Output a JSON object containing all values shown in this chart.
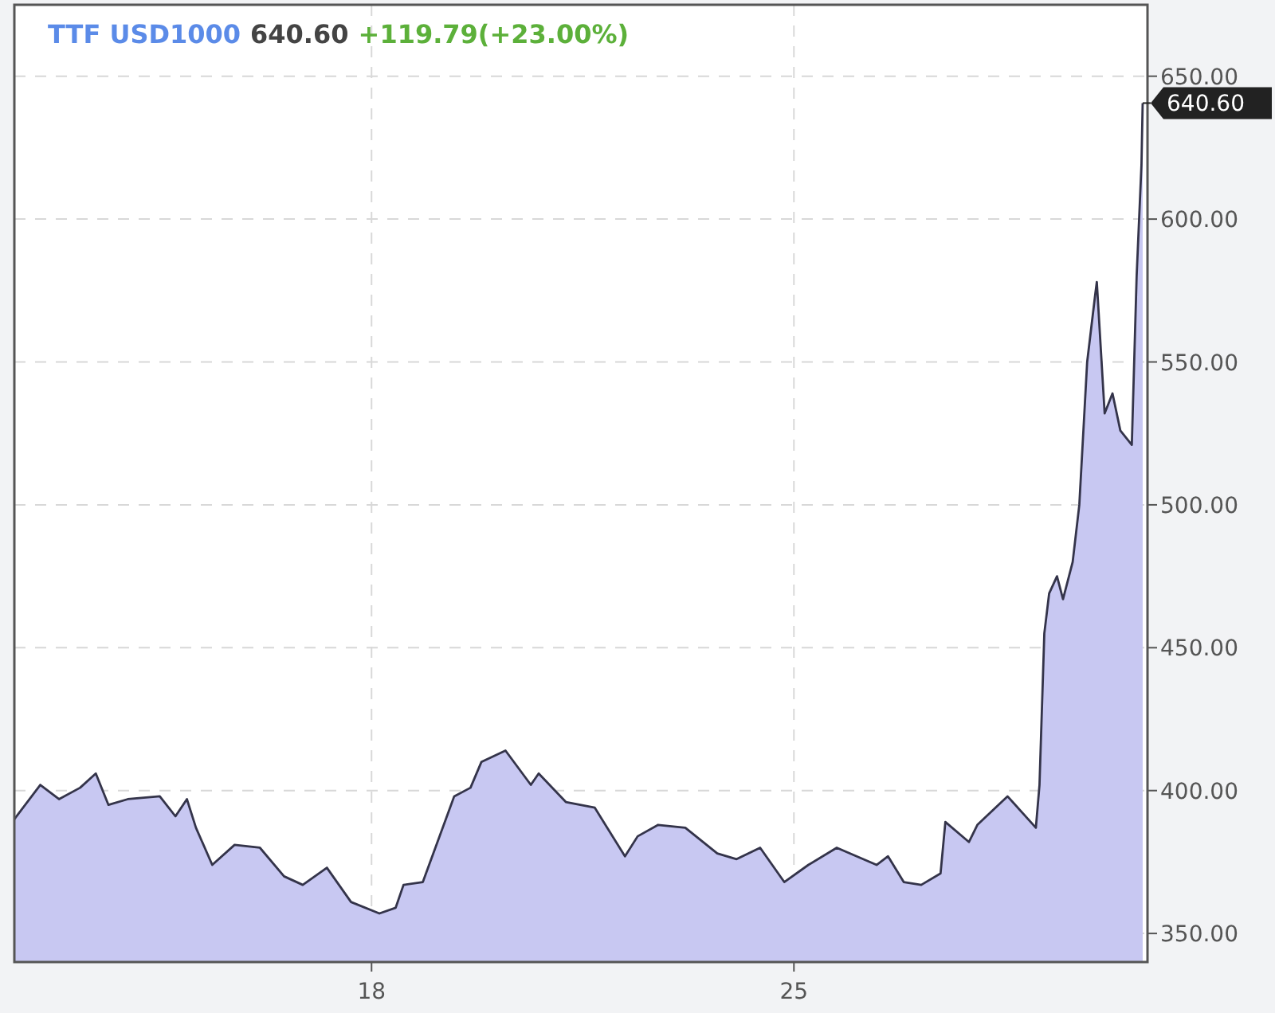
{
  "chart_data": {
    "type": "area",
    "title": "TTF USD1000",
    "annotations": [
      "640.60",
      "+119.79(+23.00%)",
      {
        "text": "640.60",
        "x": 30.78,
        "y": 640.6
      }
    ],
    "x": [
      12.08,
      12.51,
      12.82,
      13.17,
      13.43,
      13.64,
      13.96,
      14.49,
      14.75,
      14.94,
      15.09,
      15.36,
      15.73,
      16.15,
      16.55,
      16.86,
      17.26,
      17.66,
      18.13,
      18.4,
      18.53,
      18.85,
      19.37,
      19.64,
      19.82,
      20.22,
      20.64,
      20.77,
      21.22,
      21.7,
      22.2,
      22.41,
      22.75,
      23.2,
      23.73,
      24.05,
      24.44,
      24.84,
      25.24,
      25.71,
      26.37,
      26.56,
      26.82,
      27.11,
      27.43,
      27.51,
      27.9,
      28.04,
      28.54,
      29.01,
      29.07,
      29.15,
      29.23,
      29.36,
      29.46,
      29.62,
      29.73,
      29.86,
      29.99,
      30.02,
      30.15,
      30.28,
      30.41,
      30.6,
      30.68,
      30.76,
      30.78
    ],
    "series": [
      {
        "color": "#c8c8f2",
        "values": [
          390,
          402,
          397,
          401,
          406,
          395,
          397,
          398,
          391,
          397,
          387,
          374,
          381,
          380,
          370,
          367,
          373,
          361,
          357,
          359,
          367,
          368,
          398,
          401,
          410,
          414,
          402,
          406,
          396,
          394,
          377,
          384,
          388,
          387,
          378,
          376,
          380,
          368,
          374,
          380,
          374,
          377,
          368,
          367,
          371,
          389,
          382,
          388,
          398,
          387,
          402,
          455,
          469,
          475,
          467,
          480,
          500,
          550,
          573,
          578,
          532,
          539,
          526,
          521,
          580,
          619,
          640.6
        ]
      }
    ],
    "xlim": [
      12.08,
      30.86
    ],
    "xticks": [
      18,
      25
    ],
    "ylim": [
      340,
      675
    ],
    "yticks": [
      {
        "value": 350,
        "label": "350.00"
      },
      {
        "value": 400,
        "label": "400.00"
      },
      {
        "value": 450,
        "label": "450.00"
      },
      {
        "value": 500,
        "label": "500.00"
      },
      {
        "value": 550,
        "label": "550.00"
      },
      {
        "value": 600,
        "label": "600.00"
      },
      {
        "value": 650,
        "label": "650.00"
      }
    ],
    "grid": true
  }
}
